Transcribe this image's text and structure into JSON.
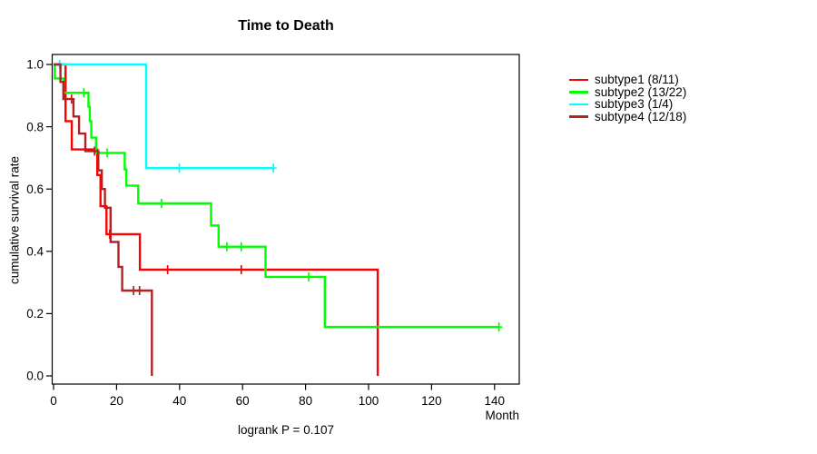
{
  "title": "Time to Death",
  "footer": "logrank P = 0.107",
  "x_axis_unit": "Month",
  "y_axis_label": "cumulative survival rate",
  "legend": [
    {
      "label": "subtype1 (8/11)",
      "color": "#FF0000"
    },
    {
      "label": "subtype2 (13/22)",
      "color": "#00FF00"
    },
    {
      "label": "subtype3 (1/4)",
      "color": "#00FFFF"
    },
    {
      "label": "subtype4 (12/18)",
      "color": "#B22222"
    }
  ],
  "chart_data": {
    "type": "line",
    "variant": "kaplan-meier-step",
    "title": "Time to Death",
    "xlabel": "Month",
    "ylabel": "cumulative survival rate",
    "annotation": "logrank P = 0.107",
    "xlim": [
      0,
      148
    ],
    "ylim": [
      0,
      1
    ],
    "x_ticks": [
      0,
      20,
      40,
      60,
      80,
      100,
      120,
      140
    ],
    "y_ticks": [
      "0.0",
      "0.2",
      "0.4",
      "0.6",
      "0.8",
      "1.0"
    ],
    "grid": false,
    "legend_position": "right",
    "series": [
      {
        "name": "subtype1 (8/11)",
        "color": "#FF0000",
        "steps": [
          [
            0,
            1.0
          ],
          [
            3.8,
            0.818
          ],
          [
            5.8,
            0.727
          ],
          [
            13.9,
            0.645
          ],
          [
            14.9,
            0.545
          ],
          [
            16.8,
            0.455
          ],
          [
            27.4,
            0.341
          ],
          [
            102.9,
            0.0
          ]
        ],
        "end": 102.9,
        "censor_marks": [
          [
            17.8,
            0.455
          ],
          [
            36.2,
            0.341
          ],
          [
            59.6,
            0.341
          ]
        ]
      },
      {
        "name": "subtype2 (13/22)",
        "color": "#00FF00",
        "steps": [
          [
            0,
            1.0
          ],
          [
            0.4,
            0.955
          ],
          [
            3.2,
            0.909
          ],
          [
            11.1,
            0.864
          ],
          [
            11.5,
            0.818
          ],
          [
            12.0,
            0.765
          ],
          [
            13.5,
            0.716
          ],
          [
            22.6,
            0.663
          ],
          [
            23.1,
            0.611
          ],
          [
            26.9,
            0.554
          ],
          [
            50.0,
            0.483
          ],
          [
            52.4,
            0.415
          ],
          [
            67.3,
            0.318
          ],
          [
            86.1,
            0.157
          ]
        ],
        "end": 141.4,
        "censor_marks": [
          [
            9.6,
            0.909
          ],
          [
            17.0,
            0.716
          ],
          [
            34.3,
            0.554
          ],
          [
            55.0,
            0.415
          ],
          [
            59.6,
            0.415
          ],
          [
            81.0,
            0.318
          ],
          [
            141.4,
            0.157
          ]
        ]
      },
      {
        "name": "subtype3 (1/4)",
        "color": "#00FFFF",
        "steps": [
          [
            0,
            1.0
          ],
          [
            29.4,
            0.667
          ]
        ],
        "end": 69.8,
        "censor_marks": [
          [
            1.9,
            1.0
          ],
          [
            39.9,
            0.667
          ],
          [
            69.8,
            0.667
          ]
        ]
      },
      {
        "name": "subtype4 (12/18)",
        "color": "#B22222",
        "steps": [
          [
            0,
            1.0
          ],
          [
            2.2,
            0.944
          ],
          [
            3.1,
            0.889
          ],
          [
            6.3,
            0.833
          ],
          [
            8.1,
            0.778
          ],
          [
            10.1,
            0.722
          ],
          [
            14.2,
            0.66
          ],
          [
            15.3,
            0.6
          ],
          [
            16.3,
            0.54
          ],
          [
            18.1,
            0.43
          ],
          [
            20.6,
            0.35
          ],
          [
            21.8,
            0.274
          ],
          [
            31.2,
            0.0
          ]
        ],
        "end": 31.2,
        "censor_marks": [
          [
            5.7,
            0.889
          ],
          [
            13.0,
            0.722
          ],
          [
            25.4,
            0.274
          ],
          [
            27.3,
            0.274
          ]
        ]
      }
    ]
  }
}
